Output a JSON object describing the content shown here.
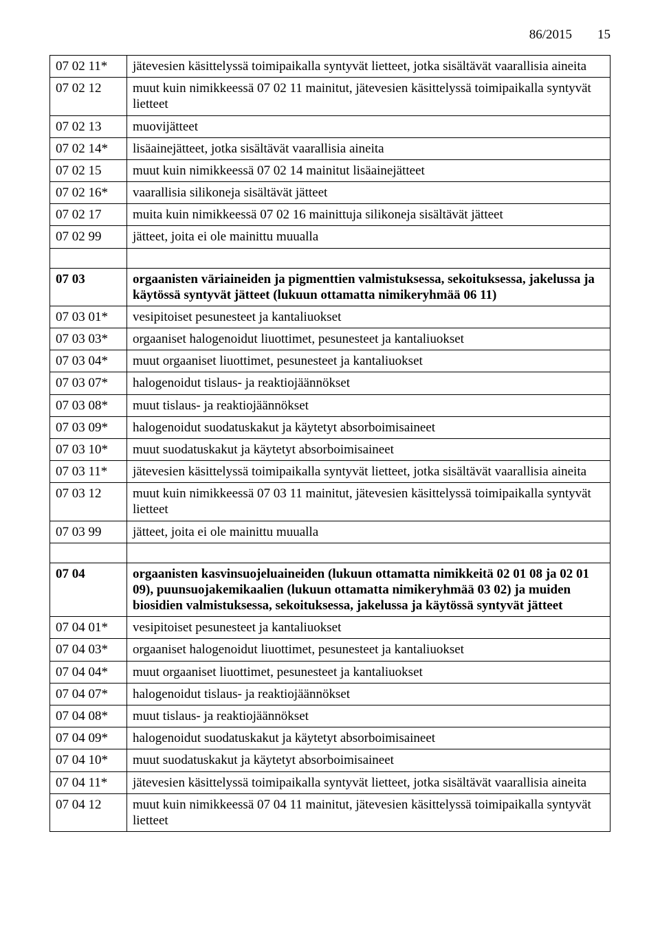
{
  "header": {
    "doc_id": "86/2015",
    "page_num": "15"
  },
  "sections": [
    {
      "rows": [
        {
          "code": "07 02 11*",
          "text": "jätevesien käsittelyssä toimipaikalla syntyvät lietteet, jotka sisältävät vaarallisia aineita"
        },
        {
          "code": "07 02 12",
          "text": "muut kuin nimikkeessä 07 02 11 mainitut, jätevesien käsittelyssä toimipaikalla syntyvät lietteet"
        },
        {
          "code": "07 02 13",
          "text": "muovijätteet"
        },
        {
          "code": "07 02 14*",
          "text": "lisäainejätteet, jotka sisältävät vaarallisia aineita"
        },
        {
          "code": "07 02 15",
          "text": "muut kuin nimikkeessä 07 02 14 mainitut lisäainejätteet"
        },
        {
          "code": "07 02 16*",
          "text": "vaarallisia silikoneja sisältävät jätteet"
        },
        {
          "code": "07 02 17",
          "text": "muita kuin nimikkeessä 07 02 16 mainittuja silikoneja sisältävät jätteet"
        },
        {
          "code": "07 02 99",
          "text": "jätteet, joita ei ole mainittu muualla"
        }
      ]
    },
    {
      "rows": [
        {
          "code": "07 03",
          "text": "orgaanisten väriaineiden ja pigmenttien valmistuksessa, sekoituksessa, jakelussa ja käytössä syntyvät jätteet (lukuun ottamatta nimikeryhmää 06 11)",
          "bold": true
        },
        {
          "code": "07 03 01*",
          "text": "vesipitoiset pesunesteet ja kantaliuokset"
        },
        {
          "code": "07 03 03*",
          "text": "orgaaniset halogenoidut liuottimet, pesunesteet ja kantaliuokset"
        },
        {
          "code": "07 03 04*",
          "text": "muut orgaaniset liuottimet, pesunesteet ja kantaliuokset"
        },
        {
          "code": "07 03 07*",
          "text": "halogenoidut tislaus- ja reaktiojäännökset"
        },
        {
          "code": "07 03 08*",
          "text": "muut tislaus- ja reaktiojäännökset"
        },
        {
          "code": "07 03 09*",
          "text": "halogenoidut suodatuskakut ja käytetyt absorboimisaineet"
        },
        {
          "code": "07 03 10*",
          "text": "muut suodatuskakut ja käytetyt absorboimisaineet"
        },
        {
          "code": "07 03 11*",
          "text": "jätevesien käsittelyssä toimipaikalla syntyvät lietteet, jotka sisältävät vaarallisia aineita"
        },
        {
          "code": "07 03 12",
          "text": "muut kuin nimikkeessä 07 03 11 mainitut, jätevesien käsittelyssä toimipaikalla syntyvät lietteet"
        },
        {
          "code": "07 03 99",
          "text": "jätteet, joita ei ole mainittu muualla"
        }
      ]
    },
    {
      "rows": [
        {
          "code": "07 04",
          "text": "orgaanisten kasvinsuojeluaineiden (lukuun ottamatta nimikkeitä 02 01 08 ja 02 01 09), puunsuojakemikaalien (lukuun ottamatta nimikeryhmää 03 02) ja muiden biosidien valmistuksessa, sekoituksessa, jakelussa ja käytössä syntyvät jätteet",
          "bold": true
        },
        {
          "code": "07 04 01*",
          "text": "vesipitoiset pesunesteet ja kantaliuokset"
        },
        {
          "code": "07 04 03*",
          "text": "orgaaniset halogenoidut liuottimet, pesunesteet ja kantaliuokset"
        },
        {
          "code": "07 04 04*",
          "text": "muut orgaaniset liuottimet, pesunesteet ja kantaliuokset"
        },
        {
          "code": "07 04 07*",
          "text": "halogenoidut tislaus- ja reaktiojäännökset"
        },
        {
          "code": "07 04 08*",
          "text": "muut tislaus- ja reaktiojäännökset"
        },
        {
          "code": "07 04 09*",
          "text": "halogenoidut suodatuskakut ja käytetyt absorboimisaineet"
        },
        {
          "code": "07 04 10*",
          "text": "muut suodatuskakut ja käytetyt absorboimisaineet"
        },
        {
          "code": "07 04 11*",
          "text": "jätevesien käsittelyssä toimipaikalla syntyvät lietteet, jotka sisältävät vaarallisia aineita"
        },
        {
          "code": "07 04 12",
          "text": "muut kuin nimikkeessä 07 04 11 mainitut, jätevesien käsittelyssä toimipaikalla syntyvät lietteet"
        }
      ]
    }
  ]
}
